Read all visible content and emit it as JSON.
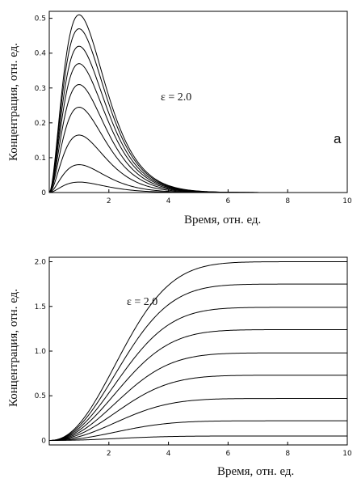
{
  "chart_data": [
    {
      "type": "line",
      "panel_label": "a",
      "xlabel": "Время,  отн. ед.",
      "ylabel": "Концентрация, отн. ед.",
      "xlim": [
        0,
        10
      ],
      "ylim": [
        0,
        0.52
      ],
      "xticks": [
        "2",
        "4",
        "6",
        "8",
        "10"
      ],
      "yticks": [
        "0",
        "0.1",
        "0.2",
        "0.3",
        "0.4",
        "0.5"
      ],
      "annotation": "ε = 2.0",
      "series": [
        {
          "peak_x": 1.0,
          "peak_y": 0.03
        },
        {
          "peak_x": 1.0,
          "peak_y": 0.08
        },
        {
          "peak_x": 1.0,
          "peak_y": 0.165
        },
        {
          "peak_x": 1.0,
          "peak_y": 0.245
        },
        {
          "peak_x": 1.0,
          "peak_y": 0.31
        },
        {
          "peak_x": 1.0,
          "peak_y": 0.37
        },
        {
          "peak_x": 1.0,
          "peak_y": 0.42
        },
        {
          "peak_x": 1.0,
          "peak_y": 0.47
        },
        {
          "peak_x": 1.0,
          "peak_y": 0.51
        }
      ]
    },
    {
      "type": "line",
      "xlabel": "Время, отн. ед.",
      "ylabel": "Концентрация, отн. ед.",
      "xlim": [
        0,
        10
      ],
      "ylim": [
        -0.05,
        2.05
      ],
      "xticks": [
        "2",
        "4",
        "6",
        "8",
        "10"
      ],
      "yticks": [
        "0",
        "0.5",
        "1.0",
        "1.5",
        "2.0"
      ],
      "annotation": "ε = 2.0",
      "series": [
        {
          "plateau": 0.05
        },
        {
          "plateau": 0.22
        },
        {
          "plateau": 0.47
        },
        {
          "plateau": 0.73
        },
        {
          "plateau": 0.98
        },
        {
          "plateau": 1.24
        },
        {
          "plateau": 1.49
        },
        {
          "plateau": 1.75
        },
        {
          "plateau": 2.0
        }
      ]
    }
  ]
}
